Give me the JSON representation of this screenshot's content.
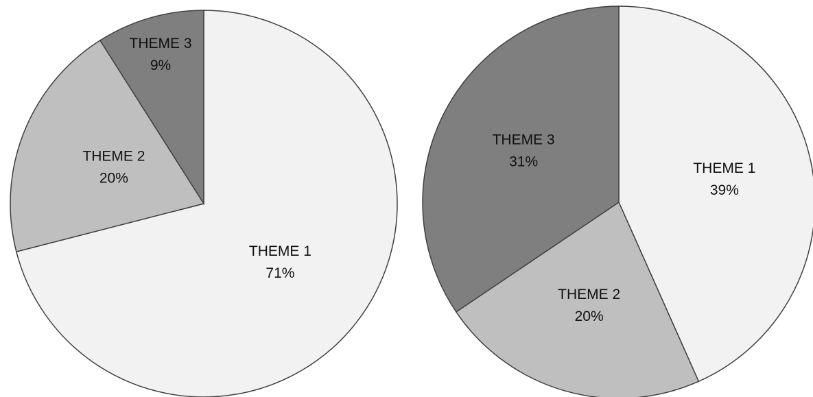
{
  "chart_data": [
    {
      "type": "pie",
      "categories": [
        "THEME 1",
        "THEME 2",
        "THEME 3"
      ],
      "values": [
        71,
        20,
        9
      ],
      "value_labels": [
        "71%",
        "20%",
        "9%"
      ],
      "colors": [
        "#f2f2f2",
        "#bfbfbf",
        "#7f7f7f"
      ]
    },
    {
      "type": "pie",
      "categories": [
        "THEME 1",
        "THEME 2",
        "THEME 3"
      ],
      "values": [
        39,
        20,
        31
      ],
      "value_labels": [
        "39%",
        "20%",
        "31%"
      ],
      "colors": [
        "#f2f2f2",
        "#bfbfbf",
        "#7f7f7f"
      ]
    }
  ]
}
